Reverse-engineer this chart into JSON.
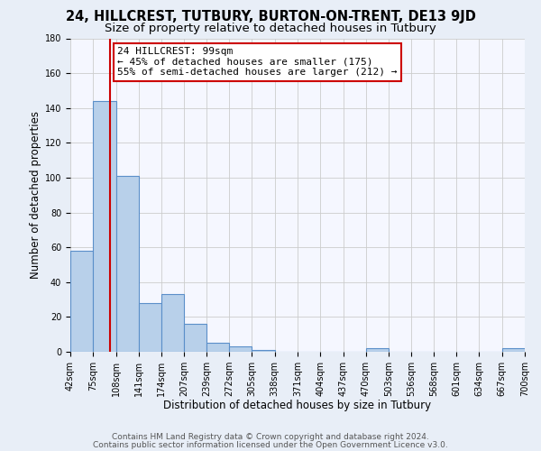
{
  "title": "24, HILLCREST, TUTBURY, BURTON-ON-TRENT, DE13 9JD",
  "subtitle": "Size of property relative to detached houses in Tutbury",
  "xlabel": "Distribution of detached houses by size in Tutbury",
  "ylabel": "Number of detached properties",
  "bar_edges": [
    42,
    75,
    108,
    141,
    174,
    207,
    239,
    272,
    305,
    338,
    371,
    404,
    437,
    470,
    503,
    536,
    568,
    601,
    634,
    667,
    700
  ],
  "bar_heights": [
    58,
    144,
    101,
    28,
    33,
    16,
    5,
    3,
    1,
    0,
    0,
    0,
    0,
    2,
    0,
    0,
    0,
    0,
    0,
    2
  ],
  "bar_color": "#b8d0ea",
  "bar_edge_color": "#5b8fc9",
  "vline_x": 99,
  "vline_color": "#cc0000",
  "annotation_line1": "24 HILLCREST: 99sqm",
  "annotation_line2": "← 45% of detached houses are smaller (175)",
  "annotation_line3": "55% of semi-detached houses are larger (212) →",
  "ylim": [
    0,
    180
  ],
  "yticks": [
    0,
    20,
    40,
    60,
    80,
    100,
    120,
    140,
    160,
    180
  ],
  "tick_labels": [
    "42sqm",
    "75sqm",
    "108sqm",
    "141sqm",
    "174sqm",
    "207sqm",
    "239sqm",
    "272sqm",
    "305sqm",
    "338sqm",
    "371sqm",
    "404sqm",
    "437sqm",
    "470sqm",
    "503sqm",
    "536sqm",
    "568sqm",
    "601sqm",
    "634sqm",
    "667sqm",
    "700sqm"
  ],
  "footer1": "Contains HM Land Registry data © Crown copyright and database right 2024.",
  "footer2": "Contains public sector information licensed under the Open Government Licence v3.0.",
  "bg_color": "#e8eef7",
  "plot_bg_color": "#f5f7ff",
  "grid_color": "#cccccc",
  "title_fontsize": 10.5,
  "subtitle_fontsize": 9.5,
  "axis_label_fontsize": 8.5,
  "tick_fontsize": 7,
  "annotation_fontsize": 8,
  "footer_fontsize": 6.5
}
